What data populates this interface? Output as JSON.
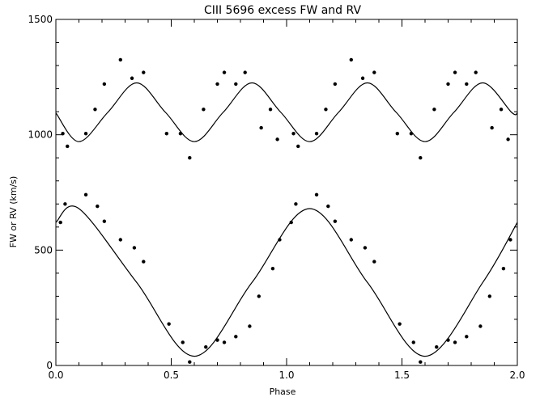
{
  "chart_data": {
    "type": "scatter",
    "title": "CIII 5696 excess FW and RV",
    "xlabel": "Phase",
    "ylabel": "FW or RV (km/s)",
    "xlim": [
      0.0,
      2.0
    ],
    "ylim": [
      0,
      1500
    ],
    "x_ticks": [
      0.0,
      0.5,
      1.0,
      1.5,
      2.0
    ],
    "x_tick_labels": [
      "0.0",
      "0.5",
      "1.0",
      "1.5",
      "2.0"
    ],
    "y_ticks": [
      0,
      500,
      1000,
      1500
    ],
    "y_tick_labels": [
      "0",
      "500",
      "1000",
      "1500"
    ],
    "grid": false,
    "series": [
      {
        "kind": "points",
        "x": [
          0.03,
          0.05,
          0.13,
          0.17,
          0.21,
          0.28,
          0.33,
          0.38,
          0.48,
          0.54,
          0.58,
          0.64,
          0.7,
          0.73,
          0.78,
          0.82,
          0.89,
          0.93,
          0.96,
          1.03,
          1.05,
          1.13,
          1.17,
          1.21,
          1.28,
          1.33,
          1.38,
          1.48,
          1.54,
          1.58,
          1.64,
          1.7,
          1.73,
          1.78,
          1.82,
          1.89,
          1.93,
          1.96
        ],
        "y": [
          1005,
          950,
          1005,
          1110,
          1220,
          1325,
          1245,
          1270,
          1005,
          1005,
          900,
          1110,
          1220,
          1270,
          1220,
          1270,
          1030,
          1110,
          980,
          1005,
          950,
          1005,
          1110,
          1220,
          1325,
          1245,
          1270,
          1005,
          1005,
          900,
          1110,
          1220,
          1270,
          1220,
          1270,
          1030,
          1110,
          980
        ]
      },
      {
        "kind": "curve",
        "x": [
          0.0,
          0.1,
          0.225,
          0.35,
          0.475,
          0.6,
          0.725,
          0.85,
          0.975,
          1.1,
          1.225,
          1.35,
          1.475,
          1.6,
          1.725,
          1.85,
          1.975,
          2.0
        ],
        "y": [
          1095,
          970,
          1097,
          1225,
          1097,
          970,
          1097,
          1225,
          1097,
          970,
          1097,
          1225,
          1097,
          970,
          1097,
          1225,
          1097,
          1095
        ]
      },
      {
        "kind": "points",
        "x": [
          0.02,
          0.04,
          0.13,
          0.18,
          0.21,
          0.28,
          0.34,
          0.38,
          0.49,
          0.55,
          0.58,
          0.65,
          0.7,
          0.73,
          0.78,
          0.84,
          0.88,
          0.94,
          0.97,
          1.02,
          1.04,
          1.13,
          1.18,
          1.21,
          1.28,
          1.34,
          1.38,
          1.49,
          1.55,
          1.58,
          1.65,
          1.7,
          1.73,
          1.78,
          1.84,
          1.88,
          1.94,
          1.97
        ],
        "y": [
          620,
          700,
          740,
          690,
          625,
          545,
          510,
          450,
          180,
          100,
          15,
          80,
          110,
          100,
          125,
          170,
          300,
          420,
          545,
          620,
          700,
          740,
          690,
          625,
          545,
          510,
          450,
          180,
          100,
          15,
          80,
          110,
          100,
          125,
          170,
          300,
          420,
          545
        ]
      },
      {
        "kind": "curve",
        "x": [
          0.0,
          0.1,
          0.35,
          0.6,
          0.85,
          1.1,
          1.35,
          1.6,
          1.85,
          2.0
        ],
        "y": [
          620,
          680,
          360,
          40,
          360,
          680,
          360,
          40,
          360,
          620
        ]
      }
    ]
  }
}
